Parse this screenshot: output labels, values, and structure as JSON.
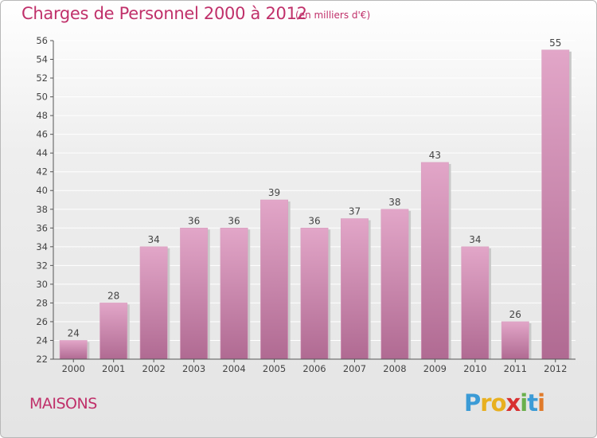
{
  "header": {
    "title": "Charges de Personnel 2000 à 2012",
    "unit_note": "(en milliers d'€)"
  },
  "footer": {
    "commune": "MAISONS",
    "logo_letters": [
      {
        "ch": "P",
        "color": "#3b9bd6"
      },
      {
        "ch": "r",
        "color": "#e8b020"
      },
      {
        "ch": "o",
        "color": "#e8b020"
      },
      {
        "ch": "x",
        "color": "#d83030"
      },
      {
        "ch": "i",
        "color": "#6ab04c"
      },
      {
        "ch": "t",
        "color": "#3b9bd6"
      },
      {
        "ch": "i",
        "color": "#e07a2a"
      }
    ]
  },
  "chart_data": {
    "type": "bar",
    "categories": [
      "2000",
      "2001",
      "2002",
      "2003",
      "2004",
      "2005",
      "2006",
      "2007",
      "2008",
      "2009",
      "2010",
      "2011",
      "2012"
    ],
    "values": [
      24,
      28,
      34,
      36,
      36,
      39,
      36,
      37,
      38,
      43,
      34,
      26,
      55
    ],
    "data_labels": [
      "24",
      "28",
      "34",
      "36",
      "36",
      "39",
      "36",
      "37",
      "38",
      "43",
      "34",
      "26",
      "55"
    ],
    "ylim": [
      22,
      56
    ],
    "yticks": [
      22,
      24,
      26,
      28,
      30,
      32,
      34,
      36,
      38,
      40,
      42,
      44,
      46,
      48,
      50,
      52,
      54,
      56
    ],
    "grid": true,
    "bar_color_top": "#e2a6c8",
    "bar_color_bottom": "#b06a92",
    "text_color": "#c0306a"
  }
}
